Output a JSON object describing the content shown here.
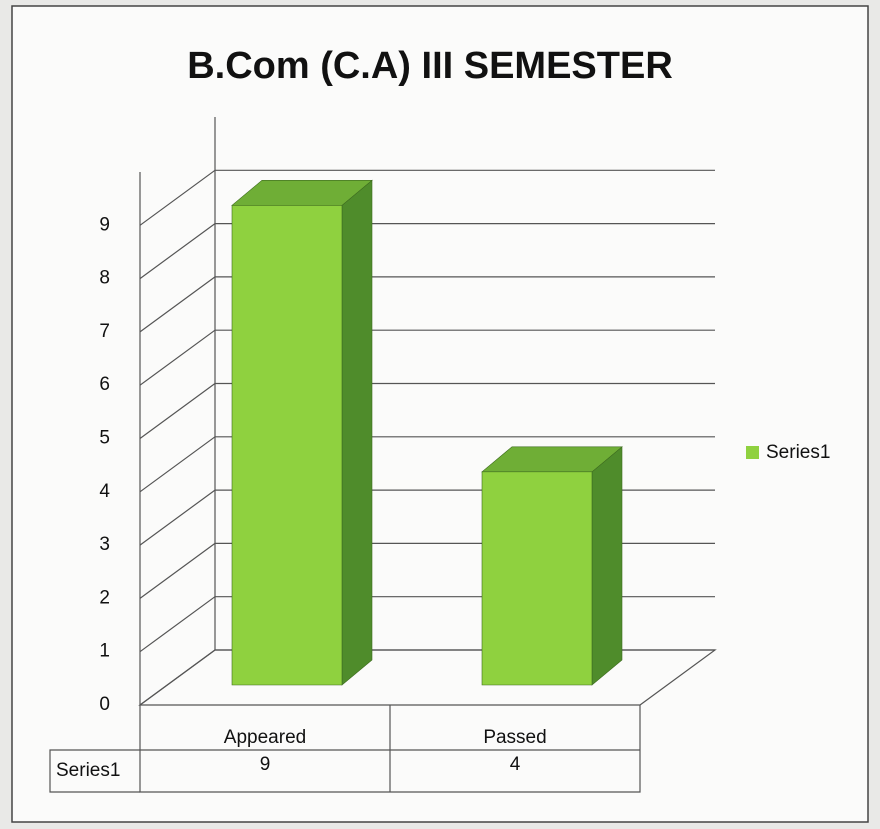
{
  "chart_data": {
    "type": "bar3d",
    "title": "B.Com (C.A)  III SEMESTER",
    "categories": [
      "Appeared",
      "Passed"
    ],
    "series": [
      {
        "name": "Series1",
        "color": "#8fd13f",
        "values": [
          9,
          4
        ]
      }
    ],
    "ylim": [
      0,
      10
    ],
    "yticks": [
      0,
      1,
      2,
      3,
      4,
      5,
      6,
      7,
      8,
      9
    ],
    "grid": true,
    "legend": "right",
    "data_table": true
  }
}
